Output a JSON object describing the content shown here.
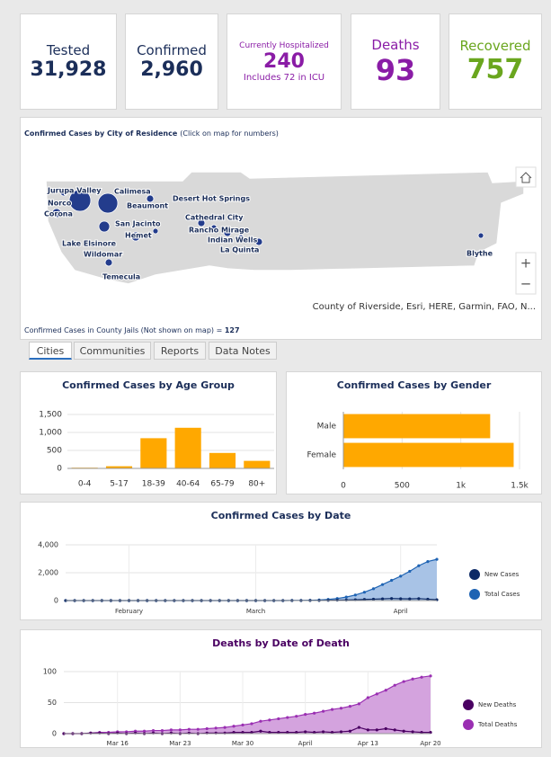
{
  "kpis": [
    {
      "label": "Tested",
      "value": "31,928"
    },
    {
      "label": "Confirmed",
      "value": "2,960"
    },
    {
      "label": "Currently Hospitalized",
      "value": "240",
      "note": "Includes 72 in ICU"
    },
    {
      "label": "Deaths",
      "value": "93"
    },
    {
      "label": "Recovered",
      "value": "757"
    }
  ],
  "map": {
    "title": "Confirmed Cases by City of Residence",
    "hint": "(Click on map for numbers)",
    "cities": [
      "Jurupa Valley",
      "Norco",
      "Corona",
      "Calimesa",
      "Beaumont",
      "Desert Hot Springs",
      "San Jacinto",
      "Hemet",
      "Cathedral City",
      "Rancho Mirage",
      "Indian Wells",
      "La Quinta",
      "Lake Elsinore",
      "Wildomar",
      "Temecula",
      "Blythe"
    ],
    "attribution": "County of Riverside, Esri, HERE, Garmin, FAO, N...",
    "zoom_in": "+",
    "zoom_out": "−",
    "jail_text": "Confirmed Cases in County Jails (Not shown on map) = ",
    "jail_value": "127"
  },
  "tabs": [
    "Cities",
    "Communities",
    "Reports",
    "Data Notes"
  ],
  "chart_data": [
    {
      "type": "bar",
      "title": "Confirmed Cases by Age Group",
      "categories": [
        "0-4",
        "5-17",
        "18-39",
        "40-64",
        "65-79",
        "80+"
      ],
      "values": [
        20,
        60,
        840,
        1130,
        430,
        210
      ],
      "color": "#ffa800",
      "ylim": [
        0,
        1500
      ],
      "yticks": [
        0,
        500,
        {
          "value": 1000,
          "label": "1,000"
        },
        {
          "value": 1500,
          "label": "1,500"
        }
      ],
      "grid": true
    },
    {
      "type": "hbar",
      "title": "Confirmed Cases by Gender",
      "categories": [
        "Male",
        "Female"
      ],
      "values": [
        1250,
        1450
      ],
      "color": "#ffa800",
      "xlim": [
        0,
        1500
      ],
      "xticks": [
        0,
        500,
        {
          "value": 1000,
          "label": "1k"
        },
        {
          "value": 1500,
          "label": "1.5k"
        }
      ],
      "grid": true
    },
    {
      "type": "area",
      "title": "Confirmed Cases by Date",
      "categories": [
        null,
        null,
        null,
        null,
        null,
        null,
        null,
        "February",
        null,
        null,
        null,
        null,
        null,
        null,
        null,
        null,
        null,
        null,
        null,
        null,
        null,
        "March",
        null,
        null,
        null,
        null,
        null,
        null,
        null,
        null,
        null,
        null,
        null,
        null,
        null,
        null,
        null,
        "April",
        null,
        null,
        null,
        null
      ],
      "series": [
        {
          "name": "New Cases",
          "color": "#0d2a66",
          "values": [
            0,
            0,
            0,
            0,
            0,
            0,
            0,
            0,
            0,
            0,
            0,
            0,
            0,
            0,
            0,
            0,
            0,
            0,
            0,
            0,
            0,
            0,
            0,
            0,
            1,
            3,
            4,
            6,
            10,
            20,
            30,
            40,
            60,
            80,
            100,
            120,
            150,
            130,
            120,
            140,
            100,
            60
          ]
        },
        {
          "name": "Total Cases",
          "color": "#1e63b3",
          "fill": "#a8c3e6",
          "values": [
            0,
            0,
            0,
            0,
            0,
            0,
            0,
            0,
            0,
            0,
            0,
            0,
            0,
            0,
            0,
            0,
            0,
            0,
            0,
            0,
            0,
            0,
            0,
            0,
            2,
            6,
            12,
            20,
            40,
            80,
            150,
            250,
            400,
            600,
            850,
            1150,
            1450,
            1750,
            2100,
            2500,
            2800,
            2960
          ]
        }
      ],
      "ylim": [
        0,
        4000
      ],
      "yticks": [
        0,
        {
          "value": 2000,
          "label": "2,000"
        },
        {
          "value": 4000,
          "label": "4,000"
        }
      ],
      "grid": true
    },
    {
      "type": "area",
      "title": "Deaths by Date of Death",
      "categories": [
        null,
        null,
        null,
        null,
        null,
        null,
        "Mar 16",
        null,
        null,
        null,
        null,
        null,
        null,
        "Mar 23",
        null,
        null,
        null,
        null,
        null,
        null,
        "Mar 30",
        null,
        null,
        null,
        null,
        null,
        null,
        "April",
        null,
        null,
        null,
        null,
        null,
        null,
        "Apr 13",
        null,
        null,
        null,
        null,
        null,
        null,
        "Apr 20"
      ],
      "series": [
        {
          "name": "New Deaths",
          "color": "#4a0062",
          "values": [
            0,
            0,
            0,
            1,
            1,
            0,
            1,
            0,
            1,
            0,
            1,
            0,
            1,
            0,
            1,
            0,
            1,
            1,
            1,
            2,
            2,
            2,
            4,
            2,
            2,
            2,
            2,
            3,
            2,
            3,
            2,
            3,
            4,
            10,
            6,
            6,
            8,
            6,
            4,
            3,
            2,
            2
          ]
        },
        {
          "name": "Total Deaths",
          "color": "#9a2fb2",
          "fill": "#d4a3de",
          "values": [
            0,
            0,
            0,
            1,
            2,
            2,
            3,
            3,
            4,
            4,
            5,
            5,
            6,
            6,
            7,
            7,
            8,
            9,
            10,
            12,
            14,
            16,
            20,
            22,
            24,
            26,
            28,
            31,
            33,
            36,
            39,
            41,
            44,
            48,
            58,
            64,
            70,
            78,
            84,
            88,
            91,
            93
          ]
        }
      ],
      "ylim": [
        0,
        100
      ],
      "yticks": [
        0,
        50,
        100
      ],
      "grid": true
    }
  ]
}
